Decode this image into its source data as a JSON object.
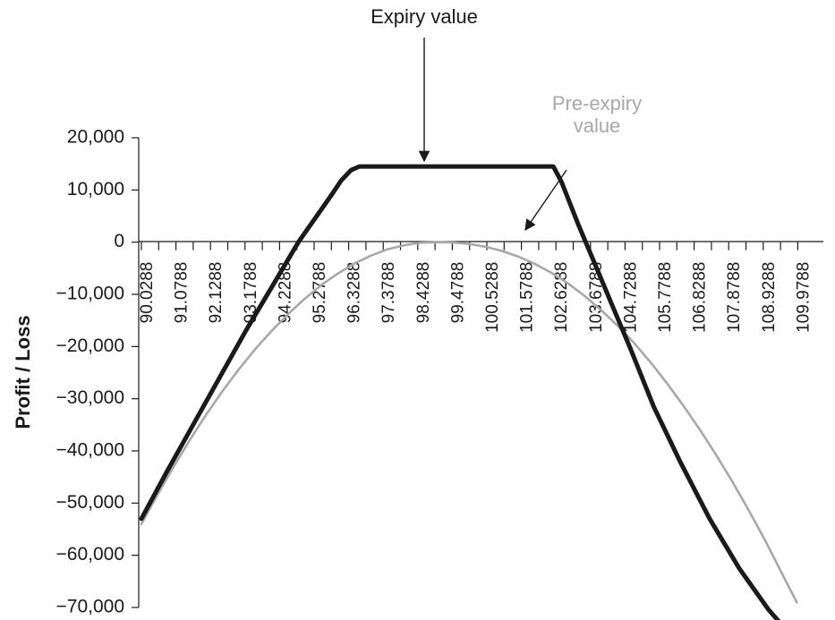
{
  "chart_data": {
    "type": "line",
    "title": "",
    "xlabel": "",
    "ylabel": "Profit / Loss",
    "ylim": [
      -70000,
      20000
    ],
    "y_ticks": [
      20000,
      10000,
      0,
      -10000,
      -20000,
      -30000,
      -40000,
      -50000,
      -60000,
      -70000
    ],
    "y_tick_labels": [
      "20,000",
      "10,000",
      "0",
      "−10,000",
      "−20,000",
      "−30,000",
      "−40,000",
      "−50,000",
      "−60,000",
      "−70,000"
    ],
    "x_tick_labels": [
      "90.0288",
      "91.0788",
      "92.1288",
      "93.1788",
      "94.2288",
      "95.2788",
      "96.3288",
      "97.3788",
      "98.4288",
      "99.4788",
      "100.5288",
      "101.5788",
      "102.6288",
      "103.6788",
      "104.7288",
      "105.7788",
      "106.8288",
      "107.8788",
      "108.9288",
      "109.9788"
    ],
    "xlim": [
      90.0288,
      110.2
    ],
    "series": [
      {
        "name": "Expiry value",
        "color": "#1a1a1a",
        "x": [
          90.0288,
          90.8,
          91.6,
          92.4,
          93.2,
          94.0,
          94.8,
          95.3,
          95.8,
          96.1,
          96.4,
          96.65,
          102.55,
          102.8,
          103.3,
          103.8,
          104.3,
          104.9,
          105.6,
          106.4,
          107.3,
          108.2,
          109.1,
          109.8
        ],
        "y": [
          -53000,
          -44000,
          -35000,
          -26000,
          -17000,
          -8500,
          0,
          4500,
          9000,
          11800,
          13800,
          14500,
          14500,
          11500,
          3500,
          -4000,
          -11500,
          -20500,
          -31500,
          -42000,
          -53000,
          -62500,
          -70500,
          -75500
        ]
      },
      {
        "name": "Pre-expiry value",
        "color": "#a8a8a8",
        "x": [
          90.0288,
          90.5,
          91.0,
          91.5,
          92.0,
          92.5,
          93.0,
          93.5,
          94.0,
          94.5,
          95.0,
          95.5,
          96.0,
          96.5,
          97.0,
          97.5,
          98.0,
          98.5,
          99.0,
          99.5,
          100.0,
          100.5,
          101.0,
          101.5,
          102.0,
          102.5,
          103.0,
          103.5,
          104.0,
          104.5,
          105.0,
          105.5,
          106.0,
          106.5,
          107.0,
          107.5,
          108.0,
          108.5,
          109.0,
          109.5,
          109.95
        ],
        "y": [
          -54000,
          -48600,
          -43100,
          -37900,
          -33000,
          -28500,
          -24300,
          -20400,
          -16900,
          -13700,
          -10800,
          -8200,
          -6000,
          -4100,
          -2600,
          -1400,
          -600,
          -100,
          0,
          -50,
          -350,
          -900,
          -1700,
          -2800,
          -4200,
          -5900,
          -7900,
          -10300,
          -13000,
          -16000,
          -19300,
          -23000,
          -27000,
          -31300,
          -35900,
          -40800,
          -46000,
          -51500,
          -57300,
          -63500,
          -69000
        ]
      }
    ],
    "annotations": [
      {
        "text": "Expiry value",
        "points_to": "Expiry value",
        "at_x": 99.4788,
        "at_y": 14500
      },
      {
        "text_lines": [
          "Pre-expiry",
          "value"
        ],
        "points_to": "Pre-expiry value",
        "at_x": 101.5,
        "at_y": 1500
      }
    ]
  }
}
